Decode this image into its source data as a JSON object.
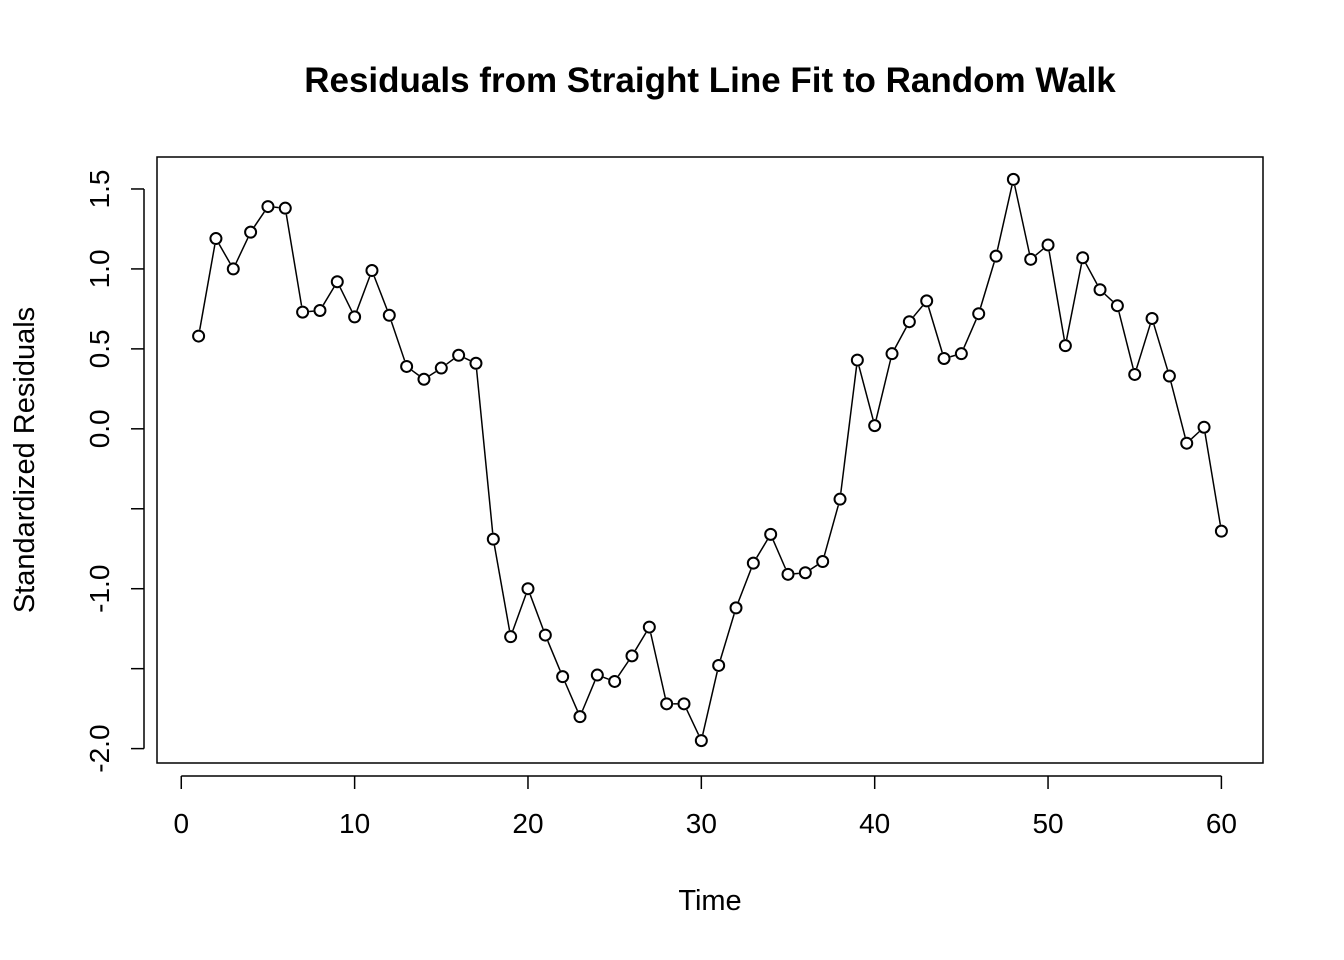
{
  "chart_data": {
    "type": "line",
    "title": "Residuals from Straight Line Fit to Random Walk",
    "xlabel": "Time",
    "ylabel": "Standardized Residuals",
    "xlim": [
      -1.4,
      62.4
    ],
    "ylim": [
      -2.09,
      1.7
    ],
    "x_ticks": [
      0,
      10,
      20,
      30,
      40,
      50,
      60
    ],
    "x_tick_labels": [
      "0",
      "10",
      "20",
      "30",
      "40",
      "50",
      "60"
    ],
    "y_ticks": [
      -2.0,
      -1.5,
      -1.0,
      -0.5,
      0.0,
      0.5,
      1.0,
      1.5
    ],
    "y_tick_labels": [
      "-2.0",
      "",
      "-1.0",
      "",
      "0.0",
      "0.5",
      "1.0",
      "1.5"
    ],
    "grid": false,
    "marker": "open-circle",
    "line_color": "#000000",
    "series": [
      {
        "x": [
          1,
          2,
          3,
          4,
          5,
          6,
          7,
          8,
          9,
          10,
          11,
          12,
          13,
          14,
          15,
          16,
          17,
          18,
          19,
          20,
          21,
          22,
          23,
          24,
          25,
          26,
          27,
          28,
          29,
          30,
          31,
          32,
          33,
          34,
          35,
          36,
          37,
          38,
          39,
          40,
          41,
          42,
          43,
          44,
          45,
          46,
          47,
          48,
          49,
          50,
          51,
          52,
          53,
          54,
          55,
          56,
          57,
          58,
          59,
          60
        ],
        "values": [
          0.58,
          1.19,
          1.0,
          1.23,
          1.39,
          1.38,
          0.73,
          0.74,
          0.92,
          0.7,
          0.99,
          0.71,
          0.39,
          0.31,
          0.38,
          0.46,
          0.41,
          -0.69,
          -1.3,
          -1.0,
          -1.29,
          -1.55,
          -1.8,
          -1.54,
          -1.58,
          -1.42,
          -1.24,
          -1.72,
          -1.72,
          -1.95,
          -1.48,
          -1.12,
          -0.84,
          -0.66,
          -0.91,
          -0.9,
          -0.83,
          -0.44,
          0.43,
          0.02,
          0.47,
          0.67,
          0.8,
          0.44,
          0.47,
          0.72,
          1.08,
          1.56,
          1.06,
          1.15,
          0.52,
          1.07,
          0.87,
          0.77,
          0.34,
          0.69,
          0.33,
          -0.09,
          0.01,
          -0.64
        ]
      }
    ]
  }
}
